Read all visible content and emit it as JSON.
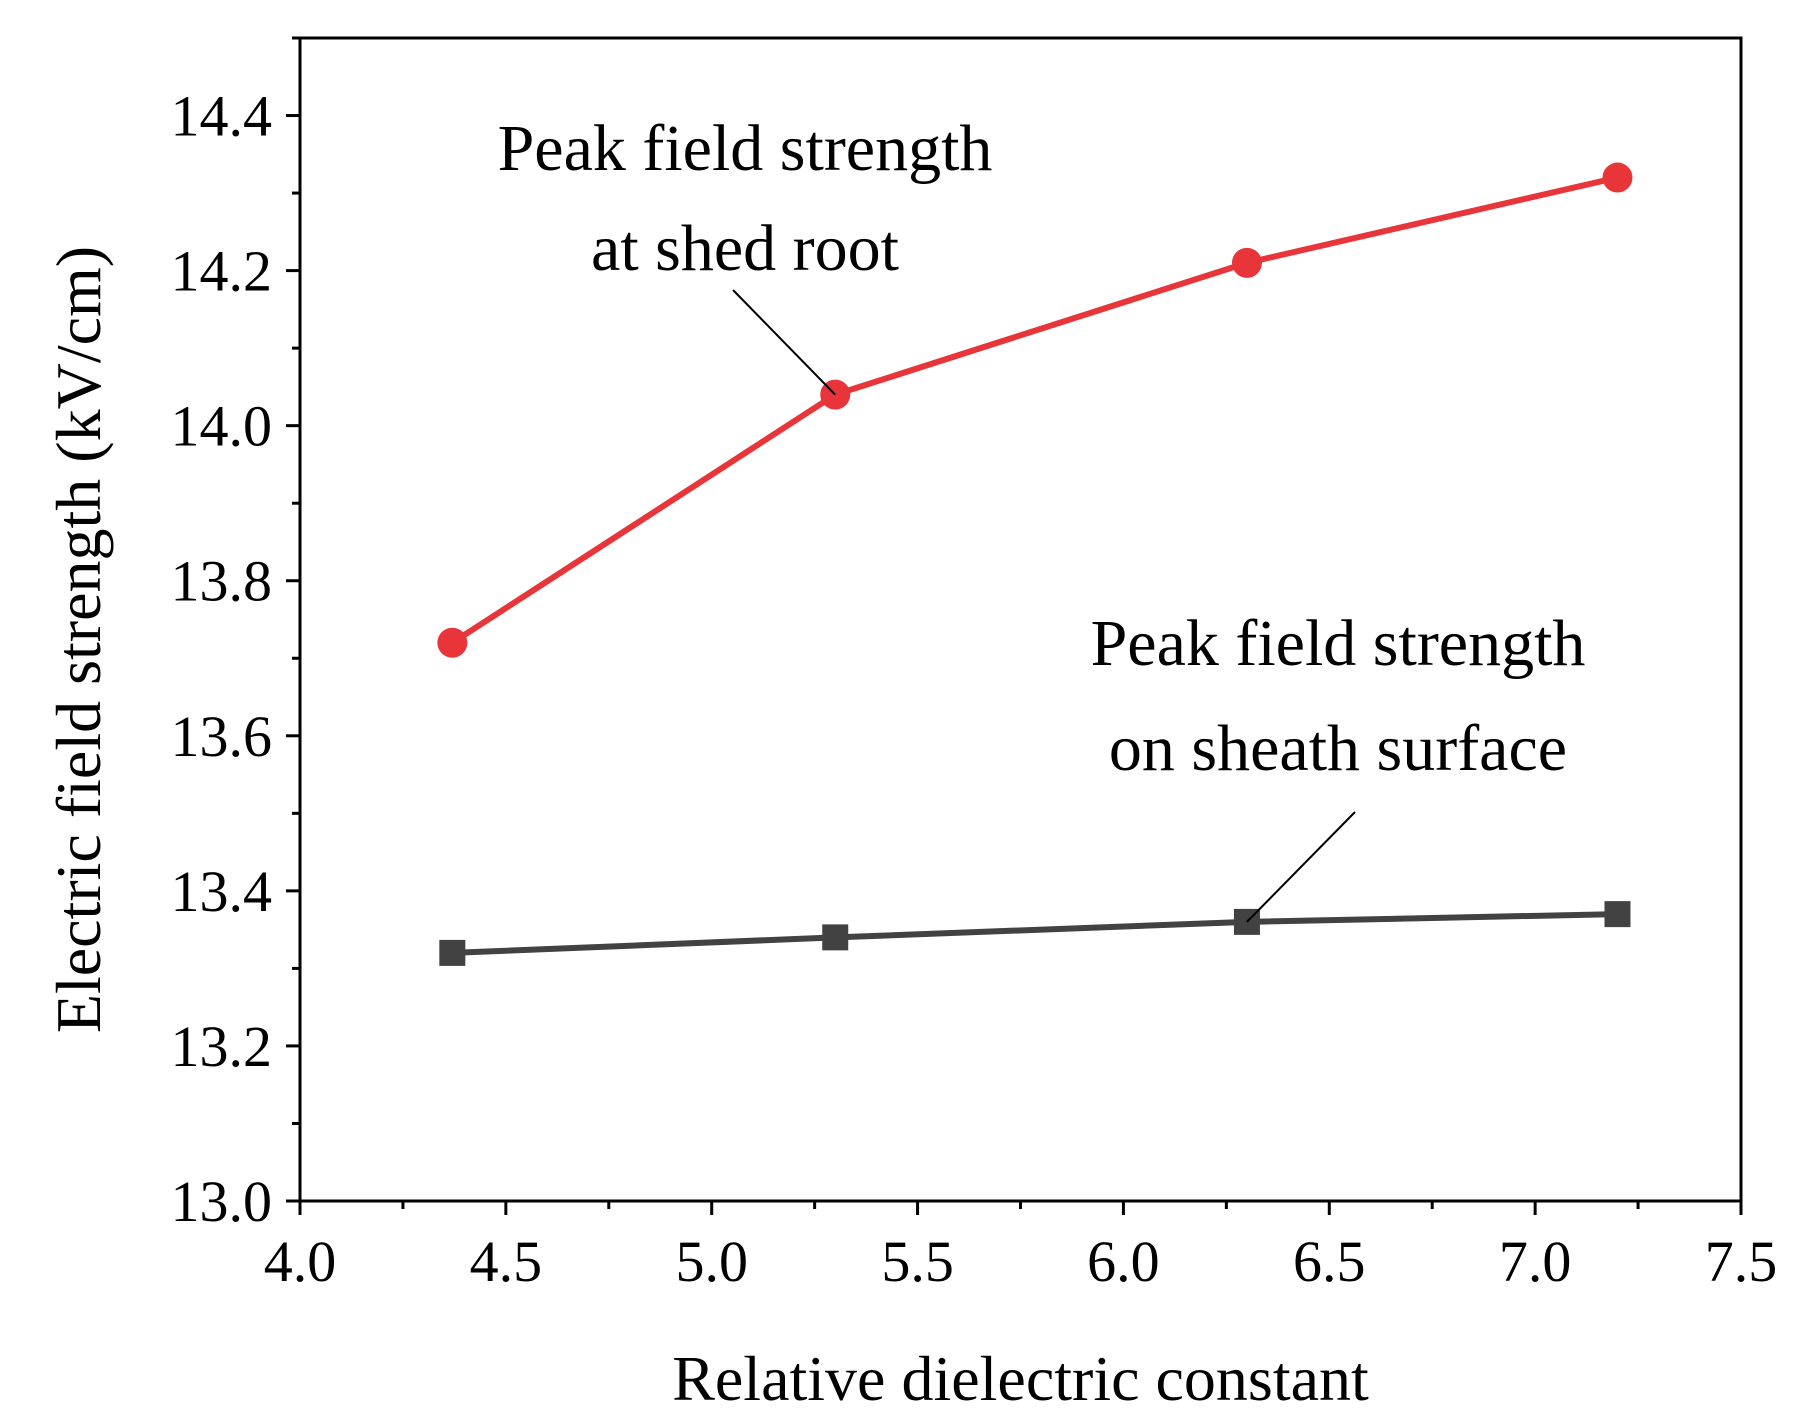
{
  "chart_data": {
    "type": "line",
    "title": "",
    "xlabel": "Relative dielectric constant",
    "ylabel": "Electric field strength (kV/cm)",
    "xlim": [
      4.0,
      7.5
    ],
    "ylim": [
      13.0,
      14.5
    ],
    "xticks": [
      "4.0",
      "4.5",
      "5.0",
      "5.5",
      "6.0",
      "6.5",
      "7.0",
      "7.5"
    ],
    "yticks": [
      "13.0",
      "13.2",
      "13.4",
      "13.6",
      "13.8",
      "14.0",
      "14.2",
      "14.4"
    ],
    "grid": false,
    "legend": "none",
    "series": [
      {
        "name": "Peak field strength at shed root",
        "color": "#e8353a",
        "marker": "circle",
        "x": [
          4.37,
          5.3,
          6.3,
          7.2
        ],
        "y": [
          13.72,
          14.04,
          14.21,
          14.32
        ]
      },
      {
        "name": "Peak field strength on sheath surface",
        "color": "#424242",
        "marker": "square",
        "x": [
          4.37,
          5.3,
          6.3,
          7.2
        ],
        "y": [
          13.32,
          13.34,
          13.36,
          13.37
        ]
      }
    ],
    "annotations": [
      {
        "lines": [
          "Peak field strength",
          "at shed root"
        ],
        "series": 0,
        "point": 1
      },
      {
        "lines": [
          "Peak field strength",
          "on sheath surface"
        ],
        "series": 1,
        "point": 2
      }
    ]
  }
}
